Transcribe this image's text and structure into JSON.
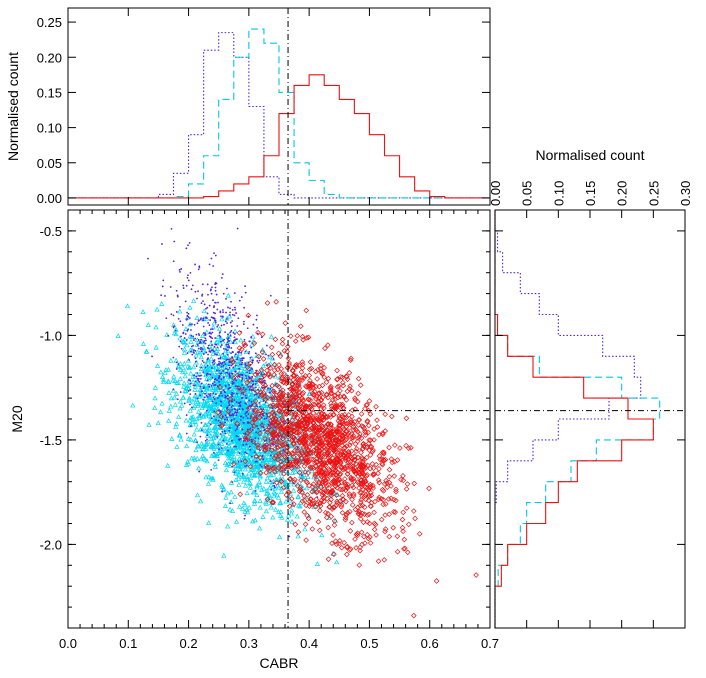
{
  "chart_data": [
    {
      "type": "scatter",
      "panel": "main",
      "xlabel": "CABR",
      "ylabel": "M20",
      "xlim": [
        0.0,
        0.7
      ],
      "ylim": [
        -2.4,
        -0.4
      ],
      "xticks": [
        "0.0",
        "0.1",
        "0.2",
        "0.3",
        "0.4",
        "0.5",
        "0.6",
        "0.7"
      ],
      "yticks": [
        "-0.5",
        "-1.0",
        "-1.5",
        "-2.0"
      ],
      "reference_lines": {
        "vertical_x": 0.365,
        "horizontal_y": -1.36
      },
      "series": [
        {
          "name": "cyan",
          "marker": "triangle",
          "color": "#00d8f0",
          "center": [
            0.29,
            -1.42
          ],
          "spread": [
            0.055,
            0.23
          ],
          "count": 1800
        },
        {
          "name": "purple",
          "marker": "dot",
          "color": "#5522e0",
          "center": [
            0.265,
            -1.17
          ],
          "spread": [
            0.045,
            0.27
          ],
          "count": 900
        },
        {
          "name": "red",
          "marker": "diamond",
          "color": "#ee1111",
          "center": [
            0.42,
            -1.52
          ],
          "spread": [
            0.06,
            0.24
          ],
          "count": 1500
        }
      ]
    },
    {
      "type": "histogram",
      "panel": "top",
      "xlabel": "",
      "ylabel": "Normalised count",
      "xlim": [
        0.0,
        0.7
      ],
      "ylim": [
        -0.01,
        0.27
      ],
      "yticks": [
        "0.00",
        "0.05",
        "0.10",
        "0.15",
        "0.20",
        "0.25"
      ],
      "bin_edges": [
        0.0,
        0.025,
        0.05,
        0.075,
        0.1,
        0.125,
        0.15,
        0.175,
        0.2,
        0.225,
        0.25,
        0.275,
        0.3,
        0.325,
        0.35,
        0.375,
        0.4,
        0.425,
        0.45,
        0.475,
        0.5,
        0.525,
        0.55,
        0.575,
        0.6,
        0.625,
        0.65,
        0.675,
        0.7
      ],
      "series": [
        {
          "name": "purple",
          "style": "dotted",
          "color": "#5522e0",
          "values": [
            0,
            0,
            0,
            0,
            0,
            0,
            0.005,
            0.035,
            0.09,
            0.21,
            0.235,
            0.2,
            0.13,
            0.03,
            0.005,
            0,
            0,
            0,
            0,
            0,
            0,
            0,
            0,
            0,
            0,
            0,
            0,
            0
          ]
        },
        {
          "name": "cyan",
          "style": "dashed",
          "color": "#00c8e0",
          "values": [
            0,
            0,
            0,
            0,
            0,
            0,
            0,
            0.002,
            0.02,
            0.06,
            0.14,
            0.2,
            0.24,
            0.22,
            0.15,
            0.05,
            0.025,
            0.005,
            0,
            0,
            0,
            0,
            0,
            0,
            0,
            0,
            0,
            0
          ]
        },
        {
          "name": "red",
          "style": "solid",
          "color": "#ee1111",
          "values": [
            0,
            0,
            0,
            0,
            0,
            0,
            0,
            0,
            0,
            0.002,
            0.01,
            0.02,
            0.03,
            0.06,
            0.12,
            0.16,
            0.175,
            0.16,
            0.14,
            0.12,
            0.09,
            0.06,
            0.03,
            0.01,
            0.002,
            0,
            0,
            0
          ]
        }
      ]
    },
    {
      "type": "histogram",
      "panel": "right",
      "orientation": "horizontal",
      "xlabel": "Normalised count",
      "ylabel": "",
      "xlim": [
        0.0,
        0.3
      ],
      "ylim": [
        -2.4,
        -0.4
      ],
      "xticks": [
        "0.00",
        "0.05",
        "0.10",
        "0.15",
        "0.20",
        "0.25",
        "0.30"
      ],
      "bin_edges": [
        -2.4,
        -2.3,
        -2.2,
        -2.1,
        -2.0,
        -1.9,
        -1.8,
        -1.7,
        -1.6,
        -1.5,
        -1.4,
        -1.3,
        -1.2,
        -1.1,
        -1.0,
        -0.9,
        -0.8,
        -0.7,
        -0.6,
        -0.5,
        -0.4
      ],
      "series": [
        {
          "name": "purple",
          "style": "dotted",
          "color": "#5522e0",
          "values": [
            0,
            0,
            0,
            0,
            0,
            0,
            0.002,
            0.02,
            0.06,
            0.1,
            0.18,
            0.23,
            0.22,
            0.17,
            0.1,
            0.07,
            0.04,
            0.012,
            0.004,
            0
          ]
        },
        {
          "name": "cyan",
          "style": "dashed",
          "color": "#00c8e0",
          "values": [
            0,
            0,
            0.005,
            0.02,
            0.04,
            0.05,
            0.08,
            0.12,
            0.16,
            0.25,
            0.26,
            0.2,
            0.07,
            0.02,
            0.004,
            0,
            0,
            0,
            0,
            0
          ]
        },
        {
          "name": "red",
          "style": "solid",
          "color": "#ee1111",
          "values": [
            0,
            0,
            0.01,
            0.02,
            0.05,
            0.08,
            0.1,
            0.13,
            0.2,
            0.25,
            0.21,
            0.14,
            0.06,
            0.02,
            0.004,
            0,
            0,
            0,
            0,
            0
          ]
        }
      ]
    }
  ]
}
